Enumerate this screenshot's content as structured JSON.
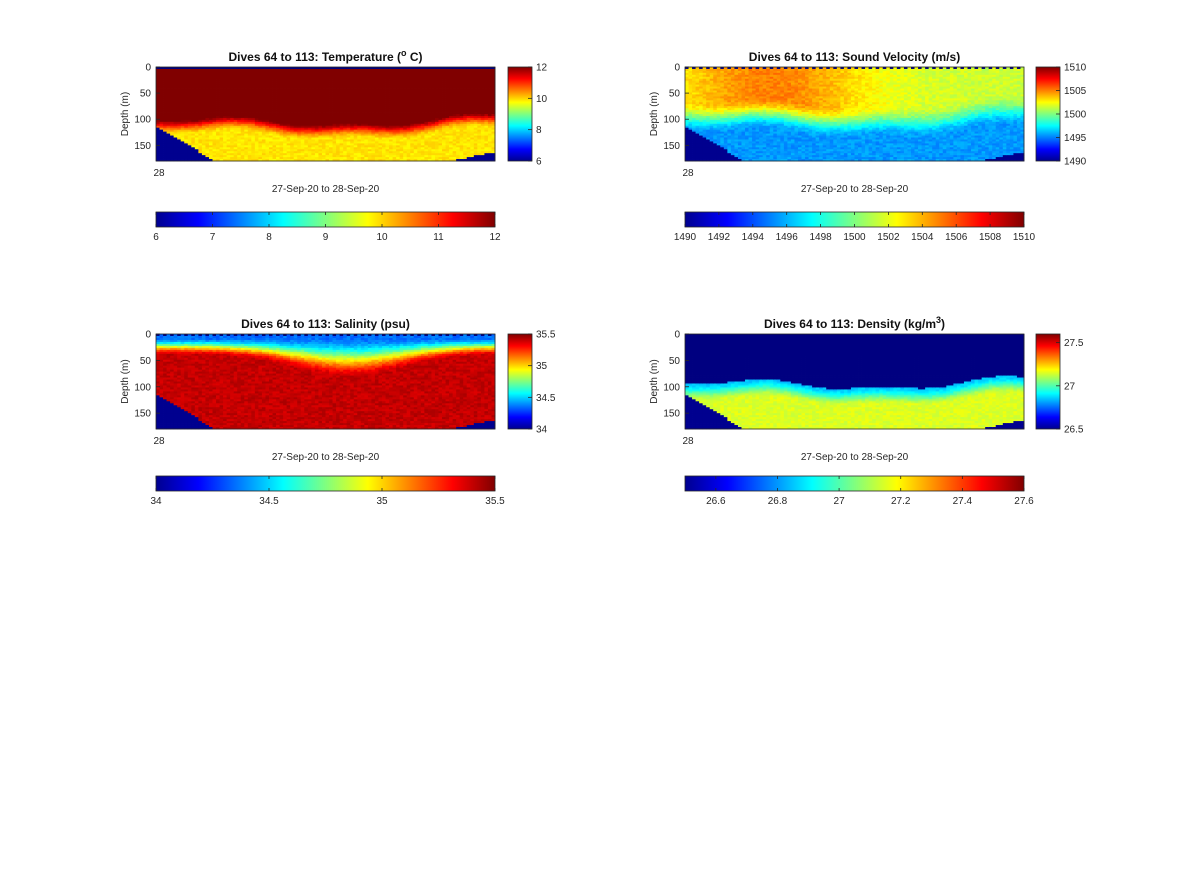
{
  "chart_data": [
    {
      "type": "heatmap",
      "title_prefix": "Dives 64 to 113: Temperature (",
      "title_sup": "o",
      "title_suffix": " C)",
      "ylabel": "Depth (m)",
      "xlabel": "27-Sep-20 to 28-Sep-20",
      "x_tick_label": "28",
      "y_ticks": [
        "0",
        "50",
        "100",
        "150"
      ],
      "ylim": [
        0,
        180
      ],
      "clim": [
        6,
        12
      ],
      "colormap": "jet",
      "colorbar_vertical_ticks": [
        "6",
        "8",
        "10",
        "12"
      ],
      "colorbar_horizontal_ticks": [
        "6",
        "7",
        "8",
        "9",
        "10",
        "11",
        "12"
      ],
      "pattern": "temperature"
    },
    {
      "type": "heatmap",
      "title_prefix": "Dives 64 to 113: Sound Velocity (m/s)",
      "title_sup": "",
      "title_suffix": "",
      "ylabel": "Depth (m)",
      "xlabel": "27-Sep-20 to 28-Sep-20",
      "x_tick_label": "28",
      "y_ticks": [
        "0",
        "50",
        "100",
        "150"
      ],
      "ylim": [
        0,
        180
      ],
      "clim": [
        1490,
        1510
      ],
      "colormap": "jet",
      "colorbar_vertical_ticks": [
        "1490",
        "1495",
        "1500",
        "1505",
        "1510"
      ],
      "colorbar_horizontal_ticks": [
        "1490",
        "1492",
        "1494",
        "1496",
        "1498",
        "1500",
        "1502",
        "1504",
        "1506",
        "1508",
        "1510"
      ],
      "pattern": "sound"
    },
    {
      "type": "heatmap",
      "title_prefix": "Dives 64 to 113: Salinity (psu)",
      "title_sup": "",
      "title_suffix": "",
      "ylabel": "Depth (m)",
      "xlabel": "27-Sep-20 to 28-Sep-20",
      "x_tick_label": "28",
      "y_ticks": [
        "0",
        "50",
        "100",
        "150"
      ],
      "ylim": [
        0,
        180
      ],
      "clim": [
        34,
        35.5
      ],
      "colormap": "jet",
      "colorbar_vertical_ticks": [
        "34",
        "34.5",
        "35",
        "35.5"
      ],
      "colorbar_horizontal_ticks": [
        "34",
        "34.5",
        "35",
        "35.5"
      ],
      "pattern": "salinity"
    },
    {
      "type": "heatmap",
      "title_prefix": "Dives 64 to 113: Density (kg/m",
      "title_sup": "3",
      "title_suffix": ")",
      "ylabel": "Depth (m)",
      "xlabel": "27-Sep-20 to 28-Sep-20",
      "x_tick_label": "28",
      "y_ticks": [
        "0",
        "50",
        "100",
        "150"
      ],
      "ylim": [
        0,
        180
      ],
      "clim": [
        26.5,
        27.6
      ],
      "colormap": "jet",
      "colorbar_vertical_ticks": [
        "26.5",
        "27",
        "27.5"
      ],
      "colorbar_horizontal_ticks": [
        "26.6",
        "26.8",
        "27",
        "27.2",
        "27.4",
        "27.6"
      ],
      "pattern": "density"
    }
  ]
}
